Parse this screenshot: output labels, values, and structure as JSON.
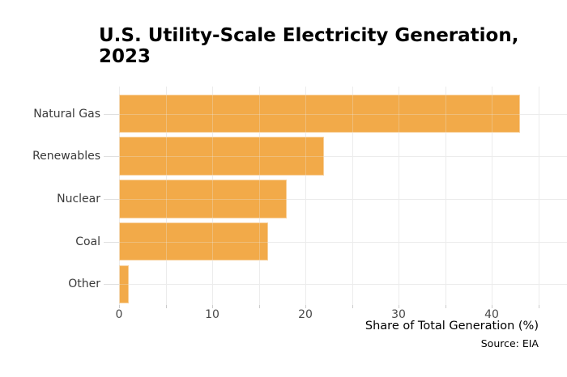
{
  "chart_data": {
    "type": "bar",
    "orientation": "horizontal",
    "title": "U.S. Utility-Scale Electricity Generation, 2023",
    "title_lines": [
      "U.S. Utility-Scale Electricity Generation,",
      "2023"
    ],
    "categories": [
      "Natural Gas",
      "Renewables",
      "Nuclear",
      "Coal",
      "Other"
    ],
    "values": [
      43,
      22,
      18,
      16,
      1
    ],
    "xlabel": "Share of Total Generation (%)",
    "source": "Source: EIA",
    "x_ticks": [
      0,
      10,
      20,
      30,
      40
    ],
    "xlim": [
      0,
      48
    ],
    "grid": true,
    "grid_step": 5,
    "legend": false,
    "colors": {
      "bar": "#F2A43C",
      "grid": "#ECECEC",
      "grid_overlay": "rgba(236,236,236,0.3)",
      "tick_label": "#4a4a4a",
      "category_label": "#3a3a3a",
      "title": "#000000",
      "axis_label": "#111111"
    }
  }
}
